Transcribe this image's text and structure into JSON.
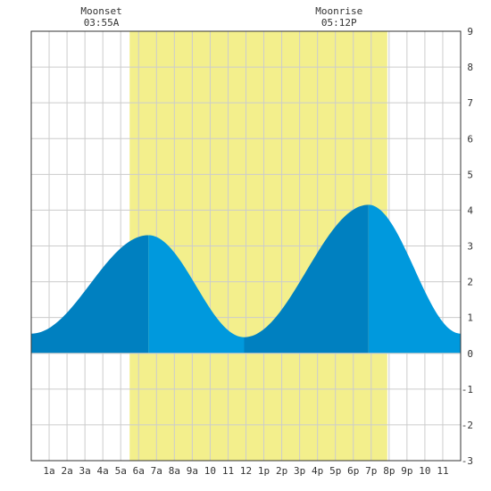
{
  "chart_data": {
    "type": "area",
    "title": "",
    "xlabel": "",
    "ylabel": "",
    "xlim": [
      0,
      24
    ],
    "ylim": [
      -3,
      9
    ],
    "grid": true,
    "x_ticks": [
      {
        "x": 1,
        "label": "1a"
      },
      {
        "x": 2,
        "label": "2a"
      },
      {
        "x": 3,
        "label": "3a"
      },
      {
        "x": 4,
        "label": "4a"
      },
      {
        "x": 5,
        "label": "5a"
      },
      {
        "x": 6,
        "label": "6a"
      },
      {
        "x": 7,
        "label": "7a"
      },
      {
        "x": 8,
        "label": "8a"
      },
      {
        "x": 9,
        "label": "9a"
      },
      {
        "x": 10,
        "label": "10"
      },
      {
        "x": 11,
        "label": "11"
      },
      {
        "x": 12,
        "label": "12"
      },
      {
        "x": 13,
        "label": "1p"
      },
      {
        "x": 14,
        "label": "2p"
      },
      {
        "x": 15,
        "label": "3p"
      },
      {
        "x": 16,
        "label": "4p"
      },
      {
        "x": 17,
        "label": "5p"
      },
      {
        "x": 18,
        "label": "6p"
      },
      {
        "x": 19,
        "label": "7p"
      },
      {
        "x": 20,
        "label": "8p"
      },
      {
        "x": 21,
        "label": "9p"
      },
      {
        "x": 22,
        "label": "10"
      },
      {
        "x": 23,
        "label": "11"
      }
    ],
    "y_ticks": [
      -3,
      -2,
      -1,
      0,
      1,
      2,
      3,
      4,
      5,
      6,
      7,
      8,
      9
    ],
    "daylight": {
      "start": 5.5,
      "end": 19.9
    },
    "extremes": [
      {
        "type": "low",
        "time": 0.0,
        "height": 0.55
      },
      {
        "type": "high",
        "time": 6.55,
        "height": 3.3
      },
      {
        "type": "low",
        "time": 11.9,
        "height": 0.45
      },
      {
        "type": "high",
        "time": 18.85,
        "height": 4.15
      },
      {
        "type": "low",
        "time": 24.0,
        "height": 0.55
      }
    ],
    "annotations": [
      {
        "label": "Moonset",
        "time_text": "03:55A",
        "x": 3.92
      },
      {
        "label": "Moonrise",
        "time_text": "05:12P",
        "x": 17.2
      }
    ],
    "colors": {
      "background": "#ffffff",
      "daylight": "#f3ef8c",
      "grid": "#cccccc",
      "rising": "#0080c0",
      "falling": "#0099dd",
      "axis": "#333333"
    }
  }
}
